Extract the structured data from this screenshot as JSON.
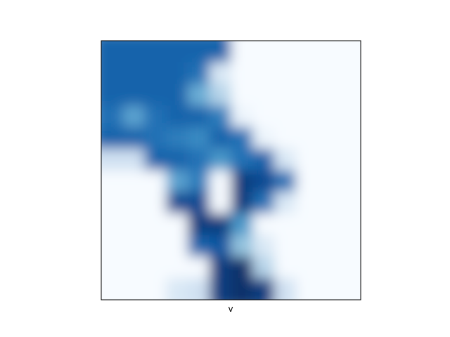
{
  "chart_data": {
    "type": "heatmap",
    "title": "",
    "xlabel": "v",
    "ylabel": "",
    "colormap": "Blues",
    "interpolation": "bicubic",
    "show_ticks": false,
    "colorbar": false,
    "grid_shape": [
      12,
      12
    ],
    "values": [
      [
        0.8,
        0.8,
        0.8,
        0.8,
        0.8,
        0.8,
        0.0,
        0.0,
        0.0,
        0.0,
        0.0,
        0.0
      ],
      [
        0.8,
        0.8,
        0.8,
        0.8,
        0.75,
        0.15,
        0.0,
        0.0,
        0.0,
        0.0,
        0.0,
        0.0
      ],
      [
        0.8,
        0.8,
        0.8,
        0.8,
        0.5,
        0.3,
        0.0,
        0.0,
        0.0,
        0.0,
        0.0,
        0.0
      ],
      [
        0.75,
        0.55,
        0.75,
        0.8,
        0.8,
        0.7,
        0.05,
        0.0,
        0.0,
        0.0,
        0.0,
        0.0
      ],
      [
        0.8,
        0.8,
        0.75,
        0.7,
        0.65,
        0.8,
        0.75,
        0.05,
        0.0,
        0.0,
        0.0,
        0.0
      ],
      [
        0.2,
        0.2,
        0.8,
        0.8,
        0.75,
        0.6,
        0.75,
        0.8,
        0.15,
        0.0,
        0.0,
        0.0
      ],
      [
        0.0,
        0.0,
        0.0,
        0.55,
        0.7,
        0.0,
        0.95,
        0.9,
        0.75,
        0.0,
        0.0,
        0.0
      ],
      [
        0.0,
        0.0,
        0.0,
        0.9,
        0.9,
        0.0,
        0.95,
        0.75,
        0.15,
        0.0,
        0.0,
        0.0
      ],
      [
        0.0,
        0.0,
        0.0,
        0.0,
        0.95,
        0.95,
        0.6,
        0.0,
        0.0,
        0.0,
        0.0,
        0.0
      ],
      [
        0.0,
        0.0,
        0.0,
        0.0,
        0.8,
        0.85,
        0.4,
        0.15,
        0.0,
        0.0,
        0.0,
        0.0
      ],
      [
        0.0,
        0.0,
        0.0,
        0.0,
        0.0,
        0.95,
        1.0,
        0.3,
        0.0,
        0.0,
        0.0,
        0.0
      ],
      [
        0.0,
        0.0,
        0.0,
        0.15,
        0.2,
        0.95,
        1.0,
        0.95,
        0.2,
        0.0,
        0.0,
        0.0
      ]
    ]
  }
}
